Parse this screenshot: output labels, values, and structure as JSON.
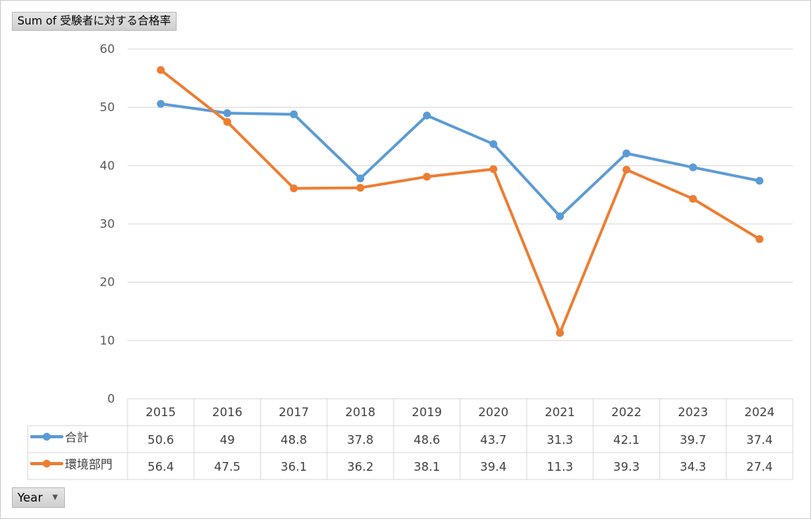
{
  "value_field_button": "Sum of 受験者に対する合格率",
  "row_field_button": "Year",
  "chart_data": {
    "type": "line",
    "title": "",
    "xlabel": "",
    "ylabel": "",
    "categories": [
      "2015",
      "2016",
      "2017",
      "2018",
      "2019",
      "2020",
      "2021",
      "2022",
      "2023",
      "2024"
    ],
    "ylim": [
      0,
      60
    ],
    "yticks": [
      0,
      10,
      20,
      30,
      40,
      50,
      60
    ],
    "grid": true,
    "legend": "data-table",
    "series": [
      {
        "name": "合計",
        "color": "#5b9bd5",
        "values": [
          50.6,
          49,
          48.8,
          37.8,
          48.6,
          43.7,
          31.3,
          42.1,
          39.7,
          37.4
        ],
        "labels": [
          "50.6",
          "49",
          "48.8",
          "37.8",
          "48.6",
          "43.7",
          "31.3",
          "42.1",
          "39.7",
          "37.4"
        ]
      },
      {
        "name": "環境部門",
        "color": "#ed7d31",
        "values": [
          56.4,
          47.5,
          36.1,
          36.2,
          38.1,
          39.4,
          11.3,
          39.3,
          34.3,
          27.4
        ],
        "labels": [
          "56.4",
          "47.5",
          "36.1",
          "36.2",
          "38.1",
          "39.4",
          "11.3",
          "39.3",
          "34.3",
          "27.4"
        ]
      }
    ]
  }
}
